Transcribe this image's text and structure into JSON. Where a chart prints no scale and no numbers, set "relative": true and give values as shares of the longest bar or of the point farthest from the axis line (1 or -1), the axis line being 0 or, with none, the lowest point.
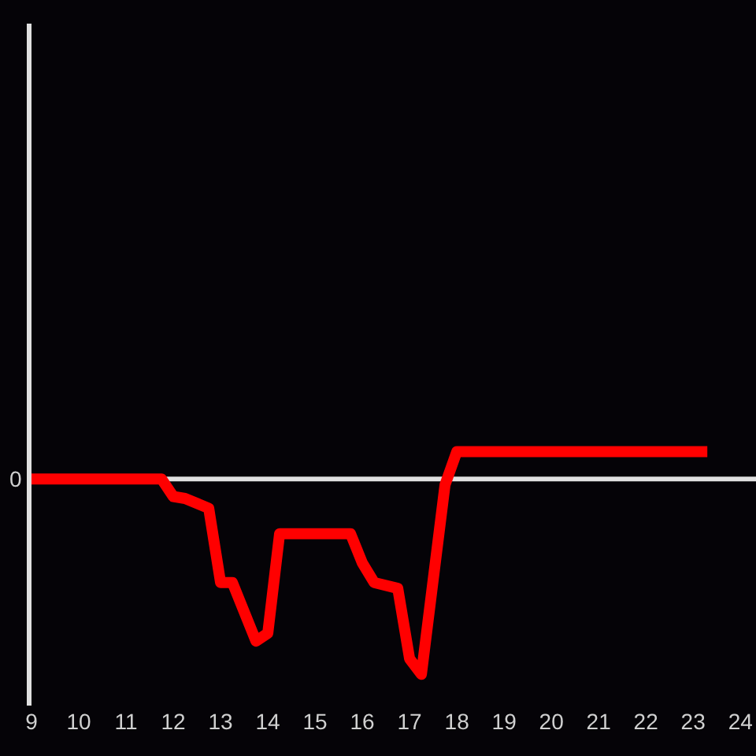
{
  "chart_data": {
    "type": "line",
    "relative": true,
    "x": [
      9,
      11.75,
      12,
      12.25,
      12.75,
      13,
      13.25,
      13.75,
      14,
      14.25,
      15.75,
      16,
      16.25,
      16.75,
      17,
      17.25,
      17.75,
      18,
      23.3
    ],
    "xlim": [
      9,
      24.33
    ],
    "xticks": [
      9,
      10,
      11,
      12,
      13,
      14,
      15,
      16,
      17,
      18,
      19,
      20,
      21,
      22,
      23,
      24
    ],
    "ref_lines": [
      {
        "axis": "y",
        "value": 0,
        "label": "0",
        "color": "#e0e0e0"
      }
    ],
    "series": [
      {
        "color": "#ff0000",
        "values": [
          0,
          0,
          -0.09,
          -0.1,
          -0.15,
          -0.53,
          -0.53,
          -0.83,
          -0.79,
          -0.28,
          -0.28,
          -0.43,
          -0.53,
          -0.56,
          -0.92,
          -1,
          -0.03,
          0.14,
          0.14
        ]
      }
    ]
  }
}
